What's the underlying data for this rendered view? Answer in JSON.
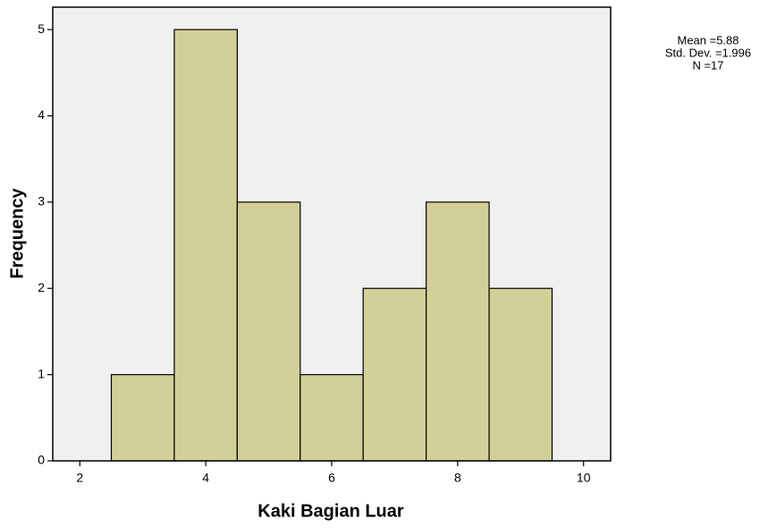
{
  "chart_data": {
    "type": "histogram",
    "xlabel": "Kaki Bagian Luar",
    "ylabel": "Frequency",
    "bins": [
      2.5,
      3.5,
      4.5,
      5.5,
      6.5,
      7.5,
      8.5,
      9.5
    ],
    "values": [
      1,
      5,
      3,
      1,
      2,
      3,
      2
    ],
    "color": "#d3cf98",
    "xlim": [
      1.57,
      10.43
    ],
    "ylim": [
      0,
      5.26
    ],
    "xticks": [
      2,
      4,
      6,
      8,
      10
    ],
    "yticks": [
      0,
      1,
      2,
      3,
      4,
      5
    ],
    "annotations": [
      "Mean =5.88",
      "Std. Dev. =1.996",
      "N =17"
    ]
  }
}
